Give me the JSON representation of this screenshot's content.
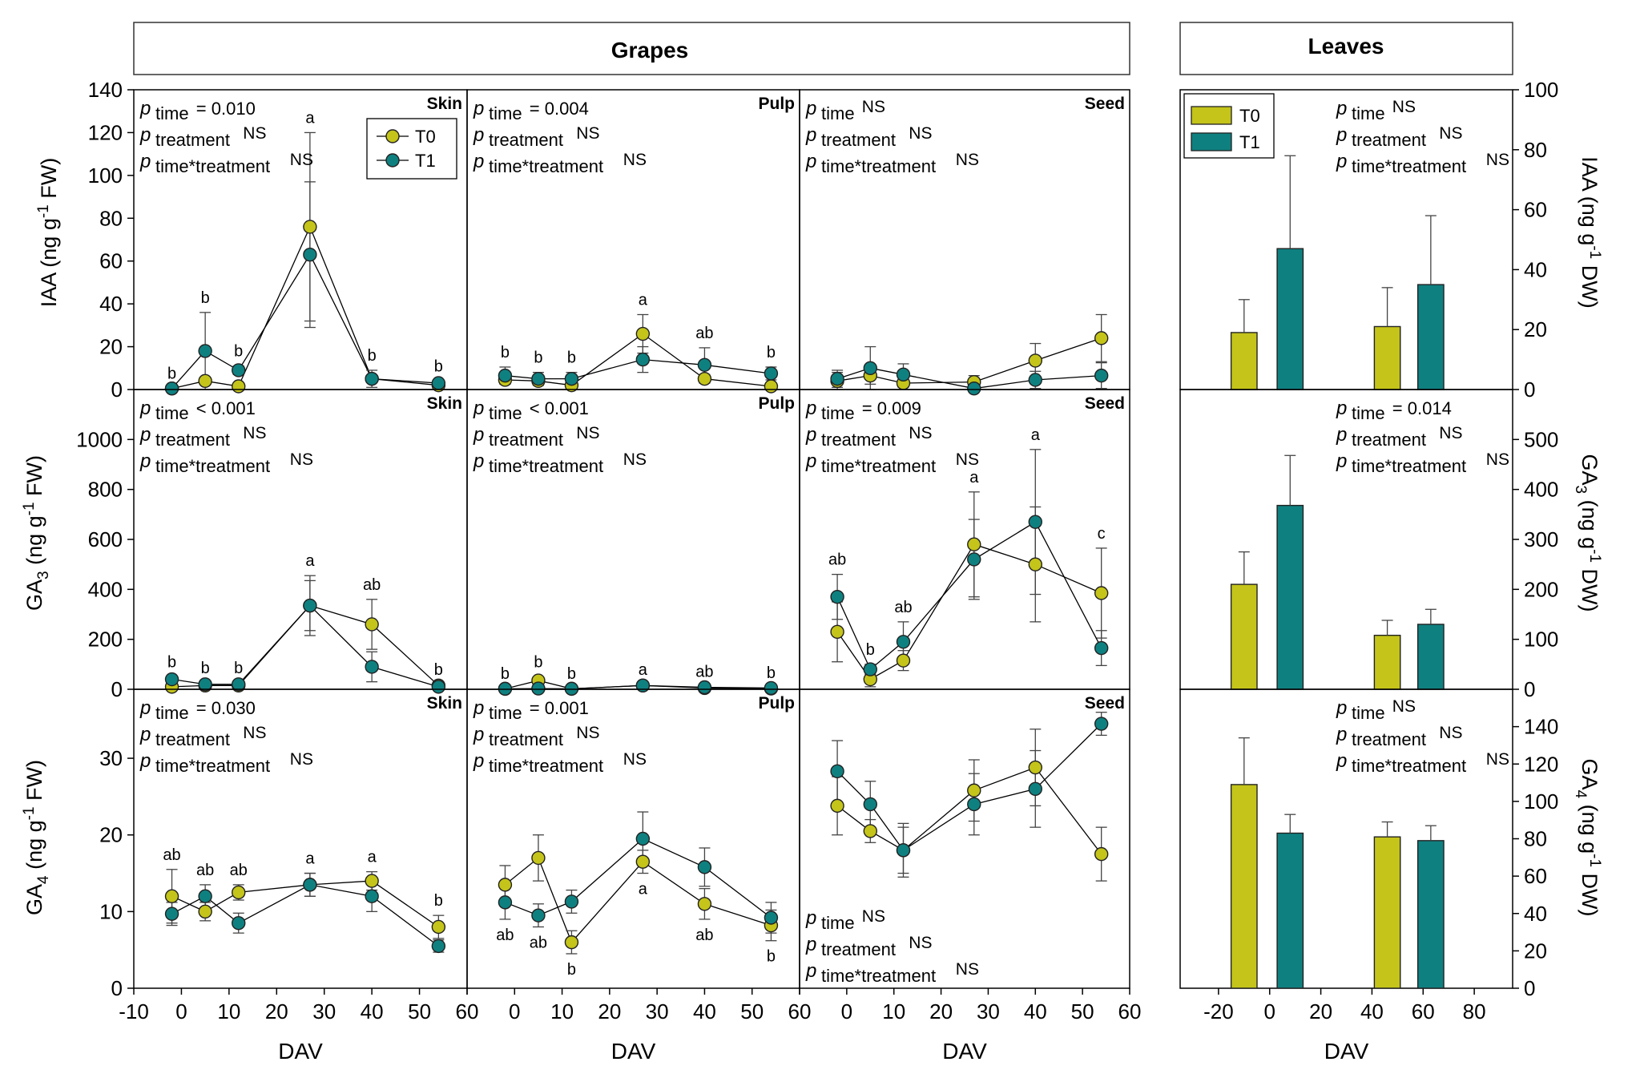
{
  "colors": {
    "T0": "#c4c41a",
    "T1": "#0f8080",
    "axis": "#000000",
    "text": "#000000",
    "errorbar": "#555555"
  },
  "headers": {
    "grapes": "Grapes",
    "leaves": "Leaves"
  },
  "legend": {
    "line": [
      "T0",
      "T1"
    ],
    "bar": [
      "T0",
      "T1"
    ]
  },
  "p_labels": {
    "time": "time",
    "treatment": "treatment",
    "interaction": "time*treatment",
    "p": "p"
  },
  "y_labels": {
    "IAA_left": "IAA (ng g-1 FW)",
    "GA3_left": "GA3 (ng g-1 FW)",
    "GA4_left": "GA4 (ng g-1 FW)",
    "IAA_right": "IAA (ng g-1 DW)",
    "GA3_right": "GA3 (ng g-1 DW)",
    "GA4_right": "GA4 (ng g-1 DW)"
  },
  "chart_data": [
    {
      "type": "line",
      "row": "IAA",
      "tissue": "Skin",
      "title": "Skin",
      "xlabel": "DAV",
      "ylabel": "IAA (ng g-1 FW)",
      "xlim": [
        -10,
        60
      ],
      "ylim": [
        0,
        140
      ],
      "yticks": [
        0,
        20,
        40,
        60,
        80,
        100,
        120,
        140
      ],
      "xticks": [
        -10,
        0,
        10,
        20,
        30,
        40,
        50,
        60
      ],
      "x": [
        -2,
        5,
        12,
        27,
        40,
        54
      ],
      "series": [
        {
          "name": "T0",
          "values": [
            0.5,
            4,
            1.5,
            76,
            5,
            2
          ],
          "err": [
            0,
            0,
            0,
            44,
            0,
            0
          ]
        },
        {
          "name": "T1",
          "values": [
            0.5,
            18,
            9,
            63,
            5,
            3
          ],
          "err": [
            0,
            18,
            2,
            34,
            4,
            1
          ]
        }
      ],
      "letters": [
        "b",
        "b",
        "b",
        "a",
        "b",
        "b"
      ],
      "letter_pos": [
        "above",
        "above",
        "above",
        "above",
        "above",
        "above"
      ],
      "stats": {
        "time": "= 0.010",
        "treatment": "NS",
        "interaction": "NS"
      },
      "stats_pos": "top"
    },
    {
      "type": "line",
      "row": "IAA",
      "tissue": "Pulp",
      "title": "Pulp",
      "xlabel": "DAV",
      "xlim": [
        -10,
        60
      ],
      "ylim": [
        0,
        140
      ],
      "x": [
        -2,
        5,
        12,
        27,
        40,
        54
      ],
      "series": [
        {
          "name": "T0",
          "values": [
            4.5,
            4,
            2,
            26,
            5,
            1.5
          ],
          "err": [
            2,
            2,
            1,
            9,
            2,
            1
          ]
        },
        {
          "name": "T1",
          "values": [
            6.5,
            5,
            5,
            14,
            11.5,
            7.5
          ],
          "err": [
            4,
            3,
            3,
            6,
            8,
            3
          ]
        }
      ],
      "letters": [
        "b",
        "b",
        "b",
        "a",
        "ab",
        "b"
      ],
      "letter_pos": [
        "above",
        "above",
        "above",
        "above",
        "above",
        "above"
      ],
      "stats": {
        "time": "= 0.004",
        "treatment": "NS",
        "interaction": "NS"
      },
      "stats_pos": "top"
    },
    {
      "type": "line",
      "row": "IAA",
      "tissue": "Seed",
      "title": "Seed",
      "xlabel": "DAV",
      "xlim": [
        -10,
        60
      ],
      "ylim": [
        0,
        140
      ],
      "x": [
        -2,
        5,
        12,
        27,
        40,
        54
      ],
      "series": [
        {
          "name": "T0",
          "values": [
            4,
            6.5,
            3,
            3.5,
            13.5,
            24
          ],
          "err": [
            4,
            4,
            2,
            3,
            8,
            11
          ]
        },
        {
          "name": "T1",
          "values": [
            5,
            10,
            7,
            0.5,
            4.5,
            6.5
          ],
          "err": [
            4,
            10,
            5,
            1,
            4,
            6
          ]
        }
      ],
      "letters": [],
      "letter_pos": [],
      "stats": {
        "time": "NS",
        "treatment": "NS",
        "interaction": "NS"
      },
      "stats_pos": "top"
    },
    {
      "type": "line",
      "row": "GA3",
      "tissue": "Skin",
      "title": "Skin",
      "xlabel": "DAV",
      "ylabel": "GA3 (ng g-1 FW)",
      "xlim": [
        -10,
        60
      ],
      "ylim": [
        0,
        1200
      ],
      "yticks": [
        0,
        200,
        400,
        600,
        800,
        1000
      ],
      "x": [
        -2,
        5,
        12,
        27,
        40,
        54
      ],
      "series": [
        {
          "name": "T0",
          "values": [
            10,
            15,
            15,
            335,
            260,
            15
          ],
          "err": [
            5,
            5,
            5,
            120,
            100,
            5
          ]
        },
        {
          "name": "T1",
          "values": [
            40,
            20,
            20,
            335,
            90,
            10
          ],
          "err": [
            10,
            5,
            5,
            100,
            60,
            5
          ]
        }
      ],
      "letters": [
        "b",
        "b",
        "b",
        "a",
        "ab",
        "b"
      ],
      "letter_pos": [
        "above",
        "above",
        "above",
        "above",
        "above",
        "above"
      ],
      "stats": {
        "time": "< 0.001",
        "treatment": "NS",
        "interaction": "NS"
      },
      "stats_pos": "top"
    },
    {
      "type": "line",
      "row": "GA3",
      "tissue": "Pulp",
      "title": "Pulp",
      "xlabel": "DAV",
      "xlim": [
        -10,
        60
      ],
      "ylim": [
        0,
        1200
      ],
      "x": [
        -2,
        5,
        12,
        27,
        40,
        54
      ],
      "series": [
        {
          "name": "T0",
          "values": [
            2,
            35,
            2,
            15,
            5,
            3
          ],
          "err": [
            1,
            15,
            1,
            5,
            3,
            2
          ]
        },
        {
          "name": "T1",
          "values": [
            2,
            3,
            2,
            15,
            8,
            5
          ],
          "err": [
            1,
            2,
            1,
            5,
            3,
            2
          ]
        }
      ],
      "letters": [
        "b",
        "b",
        "b",
        "a",
        "ab",
        "b"
      ],
      "letter_pos": [
        "above",
        "above",
        "above",
        "above",
        "above",
        "above"
      ],
      "stats": {
        "time": "< 0.001",
        "treatment": "NS",
        "interaction": "NS"
      },
      "stats_pos": "top"
    },
    {
      "type": "line",
      "row": "GA3",
      "tissue": "Seed",
      "title": "Seed",
      "xlabel": "DAV",
      "xlim": [
        -10,
        60
      ],
      "ylim": [
        0,
        1200
      ],
      "x": [
        -2,
        5,
        12,
        27,
        40,
        54
      ],
      "series": [
        {
          "name": "T0",
          "values": [
            230,
            40,
            115,
            580,
            500,
            385
          ],
          "err": [
            120,
            30,
            40,
            210,
            230,
            180
          ]
        },
        {
          "name": "T1",
          "values": [
            370,
            80,
            190,
            520,
            670,
            165
          ],
          "err": [
            90,
            20,
            80,
            160,
            290,
            70
          ]
        }
      ],
      "letters": [
        "ab",
        "b",
        "ab",
        "a",
        "a",
        "c"
      ],
      "letter_pos": [
        "above",
        "above",
        "above",
        "above",
        "above",
        "above"
      ],
      "stats": {
        "time": "= 0.009",
        "treatment": "NS",
        "interaction": "NS"
      },
      "stats_pos": "top"
    },
    {
      "type": "line",
      "row": "GA4",
      "tissue": "Skin",
      "title": "Skin",
      "xlabel": "DAV",
      "ylabel": "GA4 (ng g-1 FW)",
      "xlim": [
        -10,
        60
      ],
      "ylim": [
        0,
        39
      ],
      "yticks": [
        0,
        10,
        20,
        30
      ],
      "x": [
        -2,
        5,
        12,
        27,
        40,
        54
      ],
      "series": [
        {
          "name": "T0",
          "values": [
            12,
            10,
            12.5,
            13.5,
            14,
            8
          ],
          "err": [
            3.5,
            1.2,
            1,
            1.5,
            1.2,
            1.5
          ]
        },
        {
          "name": "T1",
          "values": [
            9.7,
            12,
            8.5,
            13.5,
            12,
            5.5
          ],
          "err": [
            1.5,
            1.5,
            1.3,
            1.5,
            2,
            0.8
          ]
        }
      ],
      "letters": [
        "ab",
        "ab",
        "ab",
        "a",
        "a",
        "b"
      ],
      "letter_pos": [
        "above",
        "above",
        "above",
        "above",
        "above",
        "above"
      ],
      "stats": {
        "time": "= 0.030",
        "treatment": "NS",
        "interaction": "NS"
      },
      "stats_pos": "top"
    },
    {
      "type": "line",
      "row": "GA4",
      "tissue": "Pulp",
      "title": "Pulp",
      "xlabel": "DAV",
      "xlim": [
        -10,
        60
      ],
      "ylim": [
        0,
        39
      ],
      "x": [
        -2,
        5,
        12,
        27,
        40,
        54
      ],
      "series": [
        {
          "name": "T0",
          "values": [
            13.5,
            17,
            6,
            16.5,
            11,
            8.2
          ],
          "err": [
            2.5,
            3,
            1.5,
            1.5,
            2,
            2
          ]
        },
        {
          "name": "T1",
          "values": [
            11.2,
            9.5,
            11.3,
            19.5,
            15.8,
            9.2
          ],
          "err": [
            2.2,
            1.5,
            1.5,
            3.5,
            2.5,
            2
          ]
        }
      ],
      "letters": [
        "ab",
        "ab",
        "b",
        "a",
        "ab",
        "b"
      ],
      "letter_pos": [
        "below",
        "below",
        "below",
        "below",
        "below",
        "below"
      ],
      "stats": {
        "time": "= 0.001",
        "treatment": "NS",
        "interaction": "NS"
      },
      "stats_pos": "top"
    },
    {
      "type": "line",
      "row": "GA4",
      "tissue": "Seed",
      "title": "Seed",
      "xlabel": "DAV",
      "xlim": [
        -10,
        60
      ],
      "ylim": [
        0,
        39
      ],
      "x": [
        -2,
        5,
        12,
        27,
        40,
        54
      ],
      "series": [
        {
          "name": "T0",
          "values": [
            23.8,
            20.5,
            18,
            25.8,
            28.8,
            17.5
          ],
          "err": [
            3.8,
            1.5,
            3.5,
            4,
            5,
            3.5
          ]
        },
        {
          "name": "T1",
          "values": [
            28.3,
            24,
            18,
            24,
            26,
            34.5
          ],
          "err": [
            4,
            3,
            3,
            4,
            5,
            1.5
          ]
        }
      ],
      "letters": [],
      "letter_pos": [],
      "stats": {
        "time": "NS",
        "treatment": "NS",
        "interaction": "NS"
      },
      "stats_pos": "bottom"
    },
    {
      "type": "bar",
      "row": "IAA",
      "tissue": "Leaves",
      "xlabel": "DAV",
      "ylabel": "IAA (ng g-1 DW)",
      "xlim": [
        -35,
        95
      ],
      "ylim": [
        0,
        100
      ],
      "yticks": [
        0,
        20,
        40,
        60,
        80,
        100
      ],
      "xticks": [
        -20,
        0,
        20,
        40,
        60,
        80
      ],
      "x": [
        0,
        55
      ],
      "series": [
        {
          "name": "T0",
          "x": [
            -10,
            46
          ],
          "values": [
            19,
            21
          ],
          "err": [
            11,
            13
          ]
        },
        {
          "name": "T1",
          "x": [
            8,
            63
          ],
          "values": [
            47,
            35
          ],
          "err": [
            31,
            23
          ]
        }
      ],
      "stats": {
        "time": "NS",
        "treatment": "NS",
        "interaction": "NS"
      }
    },
    {
      "type": "bar",
      "row": "GA3",
      "tissue": "Leaves",
      "xlabel": "DAV",
      "ylabel": "GA3 (ng g-1 DW)",
      "xlim": [
        -35,
        95
      ],
      "ylim": [
        0,
        600
      ],
      "yticks": [
        0,
        100,
        200,
        300,
        400,
        500
      ],
      "series": [
        {
          "name": "T0",
          "x": [
            -10,
            46
          ],
          "values": [
            210,
            108
          ],
          "err": [
            65,
            30
          ]
        },
        {
          "name": "T1",
          "x": [
            8,
            63
          ],
          "values": [
            368,
            130
          ],
          "err": [
            100,
            30
          ]
        }
      ],
      "stats": {
        "time": "= 0.014",
        "treatment": "NS",
        "interaction": "NS"
      }
    },
    {
      "type": "bar",
      "row": "GA4",
      "tissue": "Leaves",
      "xlabel": "DAV",
      "ylabel": "GA4 (ng g-1 DW)",
      "xlim": [
        -35,
        95
      ],
      "ylim": [
        0,
        160
      ],
      "yticks": [
        0,
        20,
        40,
        60,
        80,
        100,
        120,
        140
      ],
      "series": [
        {
          "name": "T0",
          "x": [
            -10,
            46
          ],
          "values": [
            109,
            81
          ],
          "err": [
            25,
            8
          ]
        },
        {
          "name": "T1",
          "x": [
            8,
            63
          ],
          "values": [
            83,
            79
          ],
          "err": [
            10,
            8
          ]
        }
      ],
      "stats": {
        "time": "NS",
        "treatment": "NS",
        "interaction": "NS"
      }
    }
  ]
}
